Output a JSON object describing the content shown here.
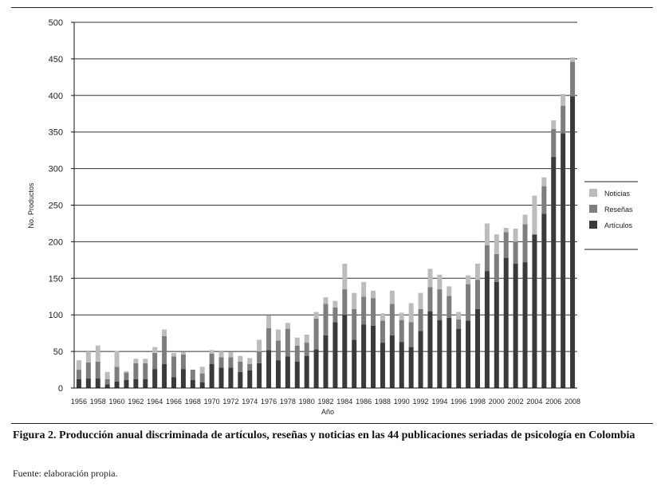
{
  "chart_data": {
    "type": "bar",
    "stacked": true,
    "xlabel": "Año",
    "ylabel": "No. Productos",
    "ylim": [
      0,
      500
    ],
    "yticks": [
      0,
      50,
      100,
      150,
      200,
      250,
      300,
      350,
      400,
      450,
      500
    ],
    "grid": true,
    "legend_position": "right",
    "categories": [
      "1956",
      "1957",
      "1958",
      "1959",
      "1960",
      "1961",
      "1962",
      "1963",
      "1964",
      "1965",
      "1966",
      "1967",
      "1968",
      "1969",
      "1970",
      "1971",
      "1972",
      "1973",
      "1974",
      "1975",
      "1976",
      "1977",
      "1978",
      "1979",
      "1980",
      "1981",
      "1982",
      "1983",
      "1984",
      "1985",
      "1986",
      "1987",
      "1988",
      "1989",
      "1990",
      "1991",
      "1992",
      "1993",
      "1994",
      "1995",
      "1996",
      "1997",
      "1998",
      "1999",
      "2000",
      "2001",
      "2002",
      "2003",
      "2004",
      "2005",
      "2006",
      "2007",
      "2008"
    ],
    "tick_labels": [
      "1956",
      "1958",
      "1960",
      "1962",
      "1964",
      "1966",
      "1968",
      "1970",
      "1972",
      "1974",
      "1976",
      "1978",
      "1980",
      "1982",
      "1984",
      "1986",
      "1988",
      "1990",
      "1992",
      "1994",
      "1996",
      "1998",
      "2000",
      "2002",
      "2004",
      "2006",
      "2008"
    ],
    "series": [
      {
        "name": "Artículos",
        "color": "#3a3a3a",
        "values": [
          12,
          13,
          13,
          5,
          9,
          11,
          12,
          12,
          26,
          33,
          15,
          26,
          11,
          8,
          33,
          28,
          28,
          22,
          24,
          34,
          52,
          38,
          43,
          36,
          44,
          53,
          72,
          90,
          100,
          66,
          87,
          85,
          62,
          72,
          63,
          56,
          78,
          105,
          93,
          96,
          81,
          92,
          108,
          160,
          145,
          178,
          170,
          172,
          210,
          238,
          316,
          348,
          399
        ]
      },
      {
        "name": "Reseñas",
        "color": "#7d7d7d",
        "values": [
          13,
          22,
          23,
          7,
          20,
          10,
          22,
          22,
          22,
          38,
          28,
          20,
          14,
          12,
          14,
          14,
          14,
          14,
          9,
          16,
          30,
          27,
          38,
          22,
          18,
          42,
          43,
          20,
          35,
          42,
          38,
          38,
          30,
          43,
          30,
          34,
          30,
          33,
          42,
          30,
          13,
          50,
          40,
          35,
          38,
          35,
          30,
          52,
          0,
          38,
          38,
          38,
          47
        ]
      },
      {
        "name": "Noticias",
        "color": "#bcbcbc",
        "values": [
          13,
          15,
          22,
          10,
          22,
          2,
          6,
          6,
          8,
          9,
          5,
          3,
          0,
          9,
          5,
          8,
          7,
          8,
          8,
          16,
          17,
          15,
          8,
          11,
          11,
          9,
          9,
          9,
          35,
          22,
          20,
          10,
          10,
          18,
          10,
          26,
          22,
          25,
          20,
          13,
          10,
          12,
          22,
          30,
          27,
          6,
          18,
          13,
          53,
          12,
          12,
          16,
          6
        ]
      }
    ]
  },
  "caption": {
    "figure_label": "Figura 2.",
    "title": "Producción anual discriminada de artículos, reseñas y noticias en las 44 publicaciones seriadas de psicología en Colombia",
    "source": "Fuente: elaboración propia."
  }
}
